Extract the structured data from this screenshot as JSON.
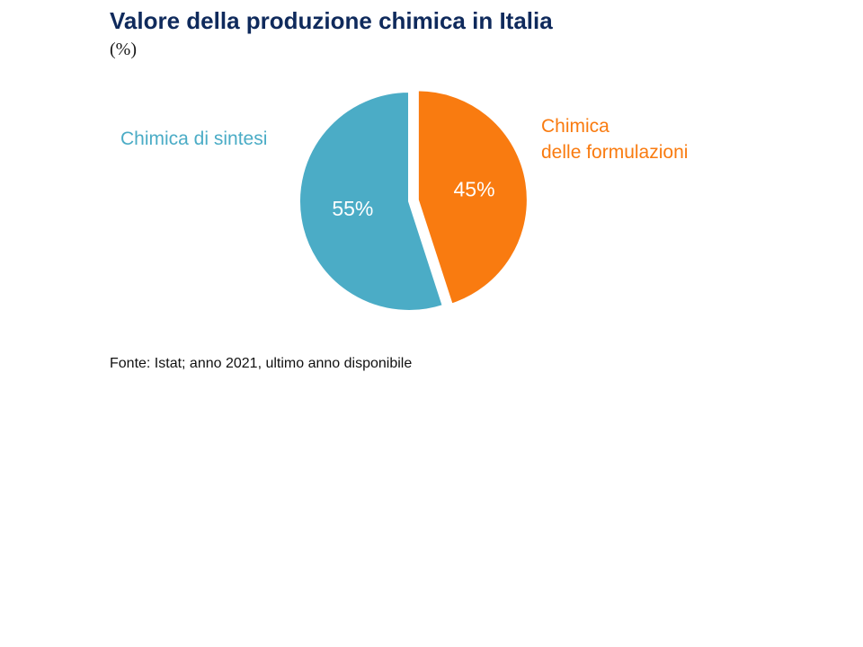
{
  "chart_data": {
    "type": "pie",
    "title": "Valore della produzione chimica in Italia",
    "subtitle": "(%)",
    "slices": [
      {
        "name": "Chimica di sintesi",
        "name_lines": [
          "Chimica di sintesi"
        ],
        "value": 55,
        "label": "55%",
        "color": "#4bacc6"
      },
      {
        "name": "Chimica delle formulazioni",
        "name_lines": [
          "Chimica",
          "delle formulazioni"
        ],
        "value": 45,
        "label": "45%",
        "color": "#f97b10",
        "exploded": true
      }
    ],
    "legend": "none",
    "source": "Fonte: Istat; anno 2021, ultimo anno disponibile"
  }
}
